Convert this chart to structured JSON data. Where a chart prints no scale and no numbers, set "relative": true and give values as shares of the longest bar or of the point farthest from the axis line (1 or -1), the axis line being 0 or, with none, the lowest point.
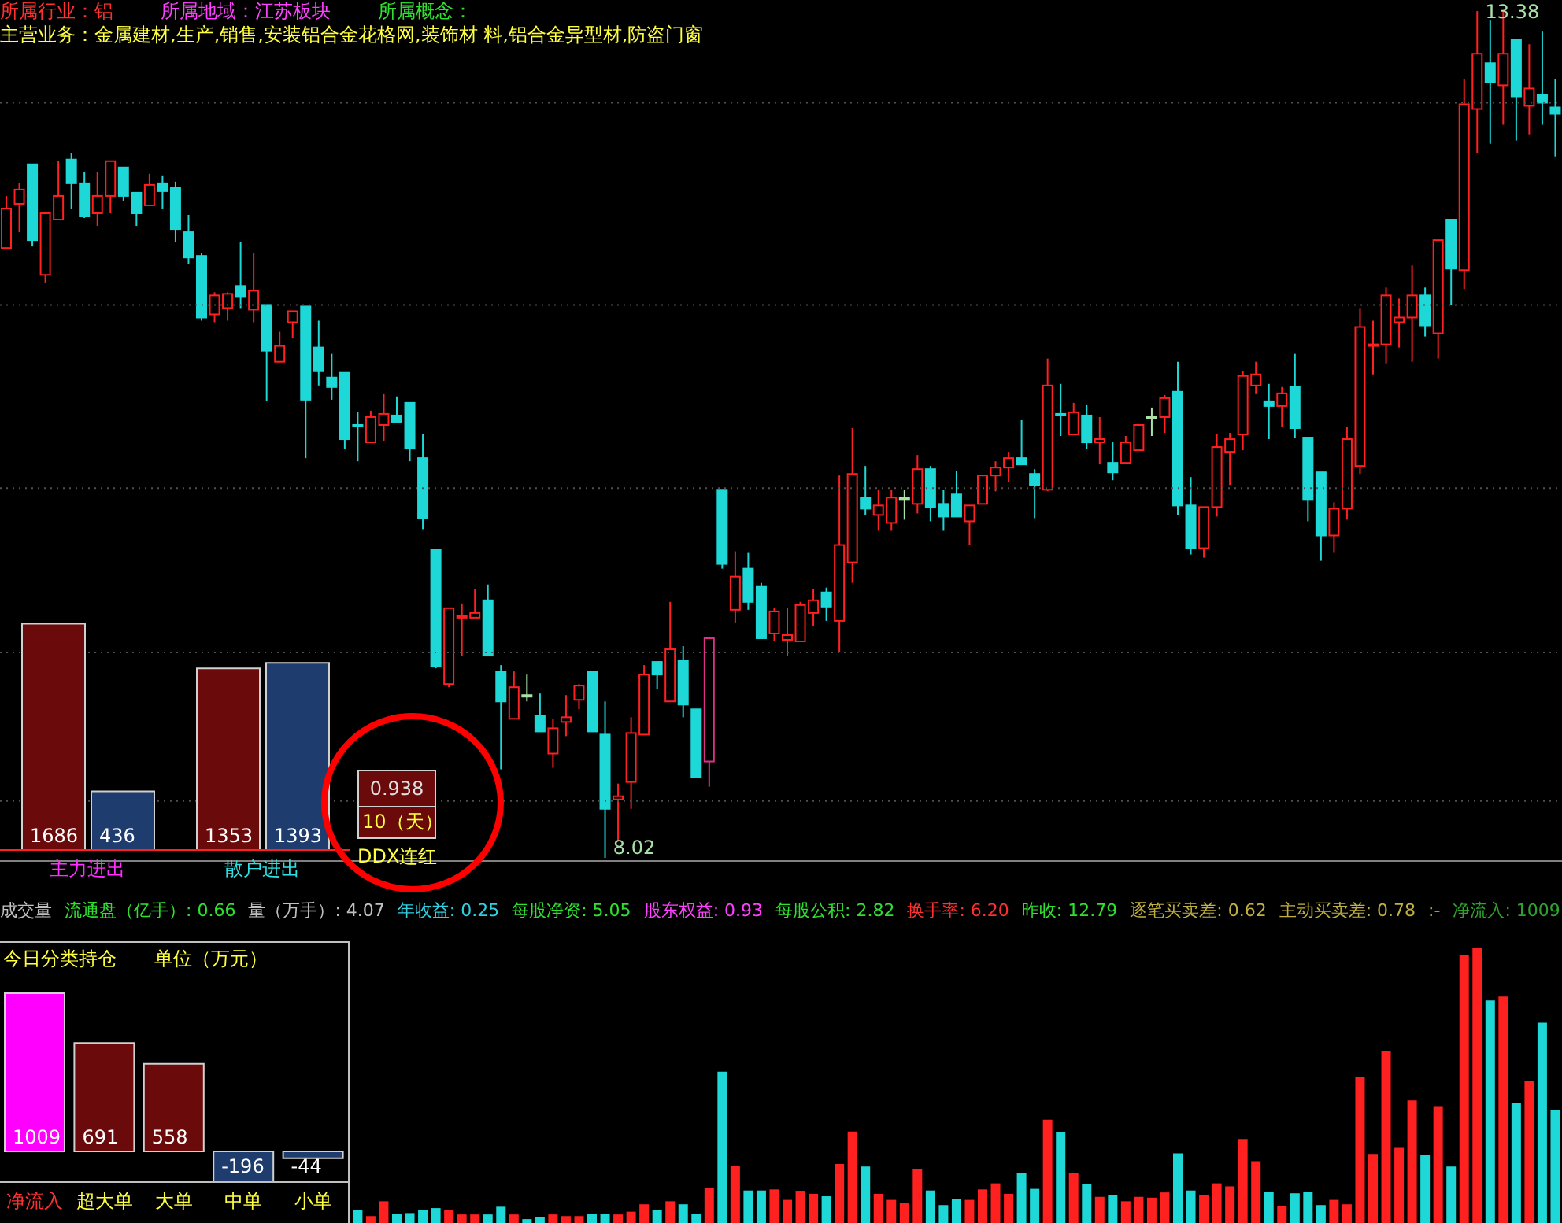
{
  "chart_data": [
    {
      "type": "candlestick",
      "categories": [
        null,
        null,
        null,
        null,
        null,
        null,
        null,
        null,
        null,
        null,
        null,
        null,
        null,
        null,
        null,
        null,
        null,
        null,
        null,
        null,
        null,
        null,
        null,
        null,
        null,
        null,
        null,
        null,
        null,
        null,
        null,
        null,
        null,
        null,
        null,
        null,
        null,
        null,
        null,
        null,
        null,
        null,
        null,
        null,
        null,
        null,
        null,
        null,
        null,
        null,
        null,
        null,
        null,
        null,
        null,
        null,
        null,
        null,
        null,
        null,
        null,
        null,
        null,
        null,
        null,
        null,
        null,
        null,
        null,
        null,
        null,
        null,
        null,
        null,
        null,
        null,
        null,
        null,
        null,
        null,
        null,
        null,
        null,
        null,
        null,
        null,
        null,
        null,
        null,
        null,
        null,
        null,
        null,
        null,
        null,
        null,
        null,
        null,
        null,
        null,
        null,
        null,
        null,
        null,
        null,
        null,
        null,
        null,
        null,
        null,
        null,
        null,
        null,
        null,
        null,
        null,
        null,
        null,
        null,
        null
      ],
      "ohlc": [
        [
          11.88,
          12.21,
          11.88,
          12.13
        ],
        [
          12.16,
          12.29,
          11.98,
          12.25
        ],
        [
          12.41,
          12.41,
          11.89,
          11.93
        ],
        [
          11.71,
          12.1,
          11.66,
          12.1
        ],
        [
          12.06,
          12.43,
          12.06,
          12.21
        ],
        [
          12.44,
          12.48,
          12.13,
          12.29
        ],
        [
          12.29,
          12.36,
          12.07,
          12.08
        ],
        [
          12.1,
          12.36,
          12.02,
          12.21
        ],
        [
          12.21,
          12.43,
          12.1,
          12.43
        ],
        [
          12.39,
          12.39,
          12.18,
          12.21
        ],
        [
          12.23,
          12.23,
          12.02,
          12.1
        ],
        [
          12.15,
          12.35,
          12.15,
          12.28
        ],
        [
          12.29,
          12.34,
          12.13,
          12.24
        ],
        [
          12.26,
          12.3,
          11.92,
          12.0
        ],
        [
          11.98,
          12.09,
          11.78,
          11.82
        ],
        [
          11.83,
          11.85,
          11.42,
          11.44
        ],
        [
          11.46,
          11.6,
          11.41,
          11.58
        ],
        [
          11.5,
          11.6,
          11.42,
          11.59
        ],
        [
          11.64,
          11.92,
          11.5,
          11.57
        ],
        [
          11.49,
          11.85,
          11.41,
          11.61
        ],
        [
          11.52,
          11.52,
          10.91,
          11.23
        ],
        [
          11.16,
          11.35,
          11.16,
          11.26
        ],
        [
          11.41,
          11.48,
          11.31,
          11.48
        ],
        [
          11.51,
          11.51,
          10.55,
          10.92
        ],
        [
          11.25,
          11.42,
          11.01,
          11.1
        ],
        [
          11.06,
          11.21,
          10.92,
          11.0
        ],
        [
          11.09,
          11.09,
          10.61,
          10.67
        ],
        [
          10.76,
          10.84,
          10.53,
          10.75
        ],
        [
          10.65,
          10.85,
          10.65,
          10.81
        ],
        [
          10.76,
          10.96,
          10.66,
          10.83
        ],
        [
          10.82,
          10.94,
          10.78,
          10.78
        ],
        [
          10.9,
          10.9,
          10.53,
          10.61
        ],
        [
          10.55,
          10.7,
          10.1,
          10.17
        ],
        [
          9.97,
          9.97,
          9.22,
          9.23
        ],
        [
          9.12,
          9.6,
          9.1,
          9.6
        ],
        [
          9.54,
          9.63,
          9.3,
          9.55
        ],
        [
          9.54,
          9.72,
          9.54,
          9.57
        ],
        [
          9.65,
          9.75,
          9.3,
          9.3
        ],
        [
          9.2,
          9.24,
          8.58,
          9.01
        ],
        [
          8.9,
          9.2,
          8.9,
          9.1
        ],
        [
          9.05,
          9.18,
          9.01,
          9.05
        ],
        [
          8.92,
          9.06,
          8.82,
          8.82
        ],
        [
          8.68,
          8.9,
          8.59,
          8.84
        ],
        [
          8.88,
          9.05,
          8.79,
          8.91
        ],
        [
          9.02,
          9.12,
          8.96,
          9.11
        ],
        [
          9.2,
          9.2,
          8.82,
          8.82
        ],
        [
          8.8,
          9.01,
          8.02,
          8.33
        ],
        [
          8.39,
          8.49,
          8.13,
          8.41
        ],
        [
          8.5,
          8.91,
          8.33,
          8.81
        ],
        [
          8.8,
          9.24,
          8.8,
          9.18
        ],
        [
          9.26,
          9.26,
          9.09,
          9.18
        ],
        [
          9.01,
          9.64,
          9.01,
          9.34
        ],
        [
          9.27,
          9.36,
          8.91,
          8.99
        ],
        [
          8.96,
          8.96,
          8.53,
          8.53
        ],
        [
          8.63,
          9.41,
          8.47,
          9.41
        ],
        [
          10.35,
          10.35,
          9.85,
          9.88
        ],
        [
          9.59,
          9.96,
          9.51,
          9.8
        ],
        [
          9.85,
          9.95,
          9.59,
          9.64
        ],
        [
          9.74,
          9.76,
          9.41,
          9.41
        ],
        [
          9.44,
          9.6,
          9.39,
          9.58
        ],
        [
          9.4,
          9.6,
          9.3,
          9.43
        ],
        [
          9.39,
          9.64,
          9.39,
          9.62
        ],
        [
          9.57,
          9.72,
          9.49,
          9.65
        ],
        [
          9.7,
          9.73,
          9.52,
          9.61
        ],
        [
          9.52,
          10.44,
          9.32,
          10.0
        ],
        [
          9.89,
          10.74,
          9.76,
          10.45
        ],
        [
          10.3,
          10.5,
          10.19,
          10.23
        ],
        [
          10.19,
          10.35,
          10.09,
          10.25
        ],
        [
          10.14,
          10.35,
          10.09,
          10.3
        ],
        [
          10.3,
          10.35,
          10.16,
          10.3
        ],
        [
          10.26,
          10.57,
          10.2,
          10.48
        ],
        [
          10.48,
          10.5,
          10.15,
          10.24
        ],
        [
          10.26,
          10.35,
          10.09,
          10.18
        ],
        [
          10.32,
          10.47,
          10.18,
          10.18
        ],
        [
          10.15,
          10.25,
          10.0,
          10.25
        ],
        [
          10.26,
          10.44,
          10.26,
          10.44
        ],
        [
          10.44,
          10.53,
          10.34,
          10.49
        ],
        [
          10.49,
          10.59,
          10.4,
          10.55
        ],
        [
          10.55,
          10.79,
          10.51,
          10.51
        ],
        [
          10.45,
          10.48,
          10.17,
          10.38
        ],
        [
          10.35,
          11.18,
          10.34,
          11.01
        ],
        [
          10.83,
          11.02,
          10.69,
          10.82
        ],
        [
          10.7,
          10.9,
          10.7,
          10.84
        ],
        [
          10.82,
          10.89,
          10.61,
          10.65
        ],
        [
          10.65,
          10.81,
          10.51,
          10.67
        ],
        [
          10.52,
          10.65,
          10.41,
          10.46
        ],
        [
          10.52,
          10.69,
          10.52,
          10.65
        ],
        [
          10.6,
          10.76,
          10.6,
          10.76
        ],
        [
          10.81,
          10.87,
          10.69,
          10.81
        ],
        [
          10.81,
          10.95,
          10.71,
          10.93
        ],
        [
          10.97,
          11.16,
          10.19,
          10.25
        ],
        [
          10.25,
          10.43,
          9.94,
          9.98
        ],
        [
          9.98,
          10.24,
          9.92,
          10.24
        ],
        [
          10.24,
          10.7,
          10.18,
          10.62
        ],
        [
          10.59,
          10.71,
          10.38,
          10.67
        ],
        [
          10.7,
          11.1,
          10.6,
          11.07
        ],
        [
          11.01,
          11.16,
          10.96,
          11.08
        ],
        [
          10.91,
          11.02,
          10.67,
          10.88
        ],
        [
          10.88,
          11.0,
          10.75,
          10.96
        ],
        [
          11.0,
          11.21,
          10.68,
          10.74
        ],
        [
          10.68,
          10.68,
          10.15,
          10.29
        ],
        [
          10.46,
          10.46,
          9.9,
          10.06
        ],
        [
          10.06,
          10.27,
          9.95,
          10.23
        ],
        [
          10.23,
          10.75,
          10.16,
          10.67
        ],
        [
          10.5,
          11.5,
          10.45,
          11.38
        ],
        [
          11.26,
          11.42,
          11.08,
          11.27
        ],
        [
          11.27,
          11.63,
          11.15,
          11.58
        ],
        [
          11.41,
          11.56,
          11.25,
          11.44
        ],
        [
          11.44,
          11.77,
          11.16,
          11.58
        ],
        [
          11.58,
          11.63,
          11.32,
          11.39
        ],
        [
          11.34,
          11.93,
          11.18,
          11.93
        ],
        [
          12.06,
          12.06,
          11.52,
          11.75
        ],
        [
          11.74,
          12.95,
          11.62,
          12.79
        ],
        [
          12.76,
          13.38,
          12.48,
          13.11
        ],
        [
          13.05,
          13.32,
          12.54,
          12.93
        ],
        [
          12.91,
          13.38,
          12.66,
          13.11
        ],
        [
          13.2,
          13.2,
          12.56,
          12.84
        ],
        [
          12.78,
          13.17,
          12.6,
          12.89
        ],
        [
          12.85,
          13.25,
          12.66,
          12.8
        ],
        [
          12.77,
          12.95,
          12.46,
          12.73
        ]
      ],
      "colors": [
        "#ff2020",
        "#ff2020",
        "#1ed8d8",
        "#ff2020",
        "#ff2020",
        "#1ed8d8",
        "#1ed8d8",
        "#ff2020",
        "#ff2020",
        "#1ed8d8",
        "#1ed8d8",
        "#ff2020",
        "#1ed8d8",
        "#1ed8d8",
        "#1ed8d8",
        "#1ed8d8",
        "#ff2020",
        "#ff2020",
        "#1ed8d8",
        "#ff2020",
        "#1ed8d8",
        "#ff2020",
        "#ff2020",
        "#1ed8d8",
        "#1ed8d8",
        "#1ed8d8",
        "#1ed8d8",
        "#1ed8d8",
        "#ff2020",
        "#ff2020",
        "#1ed8d8",
        "#1ed8d8",
        "#1ed8d8",
        "#1ed8d8",
        "#ff2020",
        "#ff2020",
        "#ff2020",
        "#1ed8d8",
        "#1ed8d8",
        "#ff2020",
        "#a8e0a8",
        "#1ed8d8",
        "#ff2020",
        "#ff2020",
        "#ff2020",
        "#1ed8d8",
        "#1ed8d8",
        "#ff2020",
        "#ff2020",
        "#ff2020",
        "#1ed8d8",
        "#ff2020",
        "#1ed8d8",
        "#1ed8d8",
        "#e0308a",
        "#1ed8d8",
        "#ff2020",
        "#1ed8d8",
        "#1ed8d8",
        "#ff2020",
        "#ff2020",
        "#ff2020",
        "#ff2020",
        "#1ed8d8",
        "#ff2020",
        "#ff2020",
        "#1ed8d8",
        "#ff2020",
        "#ff2020",
        "#a8e0a8",
        "#ff2020",
        "#1ed8d8",
        "#1ed8d8",
        "#1ed8d8",
        "#ff2020",
        "#ff2020",
        "#ff2020",
        "#ff2020",
        "#1ed8d8",
        "#1ed8d8",
        "#ff2020",
        "#1ed8d8",
        "#ff2020",
        "#1ed8d8",
        "#ff2020",
        "#1ed8d8",
        "#ff2020",
        "#ff2020",
        "#a8e0a8",
        "#ff2020",
        "#1ed8d8",
        "#1ed8d8",
        "#ff2020",
        "#ff2020",
        "#ff2020",
        "#ff2020",
        "#ff2020",
        "#1ed8d8",
        "#ff2020",
        "#1ed8d8",
        "#1ed8d8",
        "#1ed8d8",
        "#ff2020",
        "#ff2020",
        "#ff2020",
        "#ff2020",
        "#ff2020",
        "#ff2020",
        "#ff2020",
        "#1ed8d8",
        "#ff2020",
        "#1ed8d8",
        "#ff2020",
        "#ff2020",
        "#1ed8d8",
        "#ff2020",
        "#1ed8d8",
        "#ff2020",
        "#1ed8d8",
        "#1ed8d8"
      ],
      "ylim": [
        8.0,
        13.45
      ],
      "yticks": [
        {
          "value": 8.38,
          "label": null
        },
        {
          "value": 9.32,
          "label": null
        },
        {
          "value": 10.36,
          "label": null
        },
        {
          "value": 11.52,
          "label": null
        },
        {
          "value": 12.8,
          "label": null
        }
      ],
      "grid": "y",
      "annotations": [
        "所属行业：铝",
        "所属地域：江苏板块",
        "所属概念：",
        "主营业务：金属建材,生产,销售,安装铝合金花格网,装饰材 料,铝合金异型材,防盗门窗",
        "13.38",
        "8.02"
      ]
    },
    {
      "type": "bar",
      "categories": [
        "主力进出",
        "散户进出"
      ],
      "series": [
        {
          "color": "#6b0a0a",
          "values": [
            1686,
            1353
          ]
        },
        {
          "color": "#1e3c6e",
          "values": [
            436,
            1393
          ]
        }
      ],
      "data_labels": true
    },
    {
      "type": "other",
      "annotations": [
        "0.938",
        "10（天）",
        "DDX连红"
      ]
    },
    {
      "type": "bar",
      "relative": true,
      "categories": [
        null,
        null,
        null,
        null,
        null,
        null,
        null,
        null,
        null,
        null,
        null,
        null,
        null,
        null,
        null,
        null,
        null,
        null,
        null,
        null,
        null,
        null,
        null,
        null,
        null,
        null,
        null,
        null,
        null,
        null,
        null,
        null,
        null,
        null,
        null,
        null,
        null,
        null,
        null,
        null,
        null,
        null,
        null,
        null,
        null,
        null,
        null,
        null,
        null,
        null,
        null,
        null,
        null,
        null,
        null,
        null,
        null,
        null,
        null,
        null,
        null,
        null,
        null,
        null,
        null,
        null,
        null,
        null,
        null,
        null,
        null,
        null,
        null,
        null,
        null,
        null,
        null,
        null,
        null,
        null,
        null,
        null,
        null,
        null,
        null,
        null,
        null,
        null,
        null,
        null,
        null,
        null,
        null,
        null,
        null,
        null,
        null,
        null,
        null,
        null,
        null,
        null,
        null,
        null,
        null,
        null,
        null,
        null,
        null,
        null,
        null,
        null,
        null,
        null,
        null,
        null,
        null,
        null,
        null,
        null
      ],
      "values": [
        null,
        null,
        null,
        null,
        null,
        null,
        null,
        null,
        null,
        null,
        null,
        null,
        null,
        null,
        null,
        null,
        null,
        null,
        null,
        null,
        null,
        null,
        null,
        null,
        null,
        null,
        null,
        0.048,
        0.025,
        0.079,
        0.032,
        0.036,
        0.048,
        0.054,
        0.048,
        0.031,
        0.031,
        0.031,
        0.059,
        0.031,
        0.014,
        0.022,
        0.031,
        0.025,
        0.025,
        0.032,
        0.032,
        0.031,
        0.041,
        0.068,
        0.048,
        0.079,
        0.068,
        0.032,
        0.127,
        0.549,
        0.208,
        0.118,
        0.118,
        0.122,
        0.084,
        0.117,
        0.106,
        0.097,
        0.214,
        0.332,
        0.205,
        0.106,
        0.084,
        0.074,
        0.197,
        0.118,
        0.065,
        0.086,
        0.084,
        0.122,
        0.144,
        0.106,
        0.183,
        0.124,
        0.375,
        0.329,
        0.181,
        0.14,
        0.095,
        0.102,
        0.079,
        0.095,
        0.092,
        0.111,
        0.253,
        0.118,
        0.101,
        0.144,
        0.133,
        0.305,
        0.224,
        0.113,
        0.063,
        0.108,
        0.113,
        0.065,
        0.084,
        0.068,
        0.531,
        0.251,
        0.623,
        0.273,
        0.445,
        0.248,
        0.424,
        0.205,
        0.973,
        1,
        0.808,
        0.822,
        0.436,
        0.515,
        0.727,
        0.409
      ],
      "colors": [
        null,
        null,
        null,
        null,
        null,
        null,
        null,
        null,
        null,
        null,
        null,
        null,
        null,
        null,
        null,
        null,
        null,
        null,
        null,
        null,
        null,
        null,
        null,
        null,
        null,
        null,
        null,
        "#1ed8d8",
        "#ff2020",
        "#ff2020",
        "#1ed8d8",
        "#1ed8d8",
        "#1ed8d8",
        "#1ed8d8",
        "#ff2020",
        "#ff2020",
        "#ff2020",
        "#1ed8d8",
        "#1ed8d8",
        "#ff2020",
        "#1ed8d8",
        "#1ed8d8",
        "#ff2020",
        "#ff2020",
        "#ff2020",
        "#1ed8d8",
        "#1ed8d8",
        "#ff2020",
        "#ff2020",
        "#ff2020",
        "#1ed8d8",
        "#ff2020",
        "#1ed8d8",
        "#1ed8d8",
        "#ff2020",
        "#1ed8d8",
        "#ff2020",
        "#1ed8d8",
        "#1ed8d8",
        "#ff2020",
        "#ff2020",
        "#ff2020",
        "#ff2020",
        "#1ed8d8",
        "#ff2020",
        "#ff2020",
        "#1ed8d8",
        "#ff2020",
        "#ff2020",
        "#ff2020",
        "#ff2020",
        "#1ed8d8",
        "#1ed8d8",
        "#1ed8d8",
        "#ff2020",
        "#ff2020",
        "#ff2020",
        "#ff2020",
        "#1ed8d8",
        "#1ed8d8",
        "#ff2020",
        "#1ed8d8",
        "#ff2020",
        "#1ed8d8",
        "#ff2020",
        "#1ed8d8",
        "#ff2020",
        "#ff2020",
        "#ff2020",
        "#ff2020",
        "#1ed8d8",
        "#1ed8d8",
        "#ff2020",
        "#ff2020",
        "#ff2020",
        "#ff2020",
        "#ff2020",
        "#1ed8d8",
        "#ff2020",
        "#1ed8d8",
        "#1ed8d8",
        "#1ed8d8",
        "#ff2020",
        "#ff2020",
        "#ff2020",
        "#ff2020",
        "#ff2020",
        "#ff2020",
        "#ff2020",
        "#1ed8d8",
        "#ff2020",
        "#1ed8d8",
        "#ff2020",
        "#ff2020",
        "#1ed8d8",
        "#ff2020",
        "#1ed8d8",
        "#ff2020",
        "#1ed8d8",
        "#1ed8d8"
      ],
      "annotations": [
        "成交量",
        "流通盘（亿手）: 0.66",
        "量（万手）: 4.07",
        "年收益: 0.25",
        "每股净资: 5.05",
        "股东权益: 0.93",
        "每股公积: 2.82",
        "换手率: 6.20",
        "昨收: 12.79",
        "逐笔买卖差: 0.62",
        "主动买卖差: 0.78",
        ":-",
        "净流入: 1009"
      ]
    },
    {
      "type": "bar",
      "title": "今日分类持仓",
      "subtitle": "单位（万元）",
      "categories": [
        "净流入",
        "超大单",
        "大单",
        "中单",
        "小单"
      ],
      "values": [
        1009,
        691,
        558,
        -196,
        -44
      ],
      "colors": [
        "#ff00ff",
        "#6b0a0a",
        "#6b0a0a",
        "#1e3c6e",
        "#1e3c6e"
      ],
      "data_labels": true
    }
  ]
}
